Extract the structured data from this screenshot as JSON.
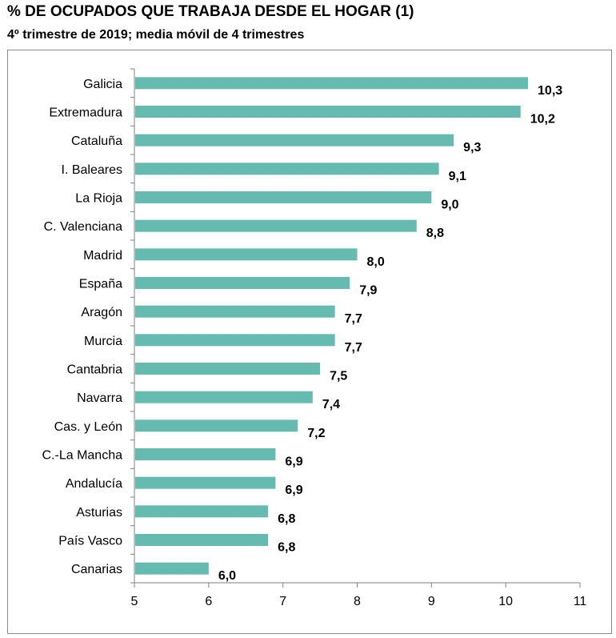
{
  "title": "% DE OCUPADOS QUE TRABAJA DESDE EL HOGAR (1)",
  "subtitle": "4º trimestre de 2019; media móvil de 4 trimestres",
  "chart_data": {
    "type": "bar",
    "orientation": "horizontal",
    "categories": [
      "Galicia",
      "Extremadura",
      "Cataluña",
      "I. Baleares",
      "La Rioja",
      "C. Valenciana",
      "Madrid",
      "España",
      "Aragón",
      "Murcia",
      "Cantabria",
      "Navarra",
      "Cas. y León",
      "C.-La Mancha",
      "Andalucía",
      "Asturias",
      "País Vasco",
      "Canarias"
    ],
    "values": [
      10.3,
      10.2,
      9.3,
      9.1,
      9.0,
      8.8,
      8.0,
      7.9,
      7.7,
      7.7,
      7.5,
      7.4,
      7.2,
      6.9,
      6.9,
      6.8,
      6.8,
      6.0
    ],
    "value_labels": [
      "10,3",
      "10,2",
      "9,3",
      "9,1",
      "9,0",
      "8,8",
      "8,0",
      "7,9",
      "7,7",
      "7,7",
      "7,5",
      "7,4",
      "7,2",
      "6,9",
      "6,9",
      "6,8",
      "6,8",
      "6,0"
    ],
    "xlim": [
      5,
      11
    ],
    "xticks": [
      "5",
      "6",
      "7",
      "8",
      "9",
      "10",
      "11"
    ],
    "bar_color": "#66bbb0",
    "grid": false,
    "legend": "none"
  }
}
